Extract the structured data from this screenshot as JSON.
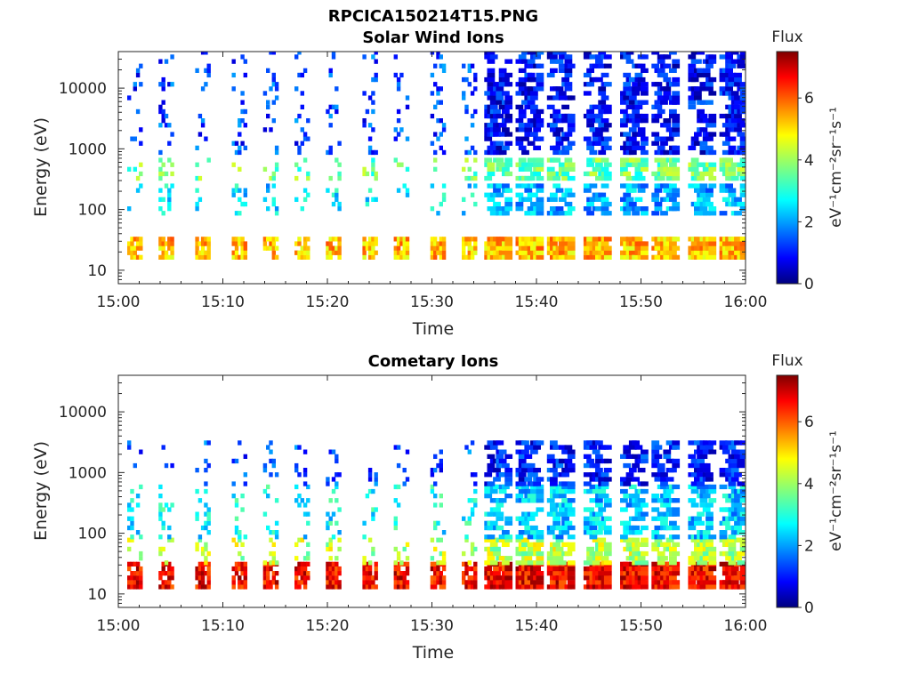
{
  "figure_title": "RPCICA150214T15.PNG",
  "colorbar": {
    "title": "Flux",
    "unit": "eV⁻¹cm⁻²sr⁻¹s⁻¹",
    "range": [
      0,
      7.5
    ],
    "ticks": [
      "0",
      "2",
      "4",
      "6"
    ],
    "colormap": "jet"
  },
  "chart_data": [
    {
      "type": "heatmap",
      "title": "Solar Wind Ions",
      "xlabel": "Time",
      "ylabel": "Energy (eV)",
      "x_ticks": [
        "15:00",
        "15:10",
        "15:20",
        "15:30",
        "15:40",
        "15:50",
        "16:00"
      ],
      "xlim_minutes": [
        0,
        60
      ],
      "y_scale": "log",
      "ylim": [
        6,
        40000
      ],
      "y_ticks": [
        "10",
        "100",
        "1000",
        "10000"
      ],
      "sweep_times_minutes": [
        1.5,
        4.5,
        8,
        11.5,
        14.5,
        17.5,
        20.5,
        24,
        27,
        30.5,
        33.5,
        36,
        39,
        42,
        45.5,
        49,
        52,
        55.5,
        58.5
      ],
      "dense_mode_start_minutes": 34.5,
      "bands": [
        {
          "energy_eV": [
            15,
            30
          ],
          "flux": 5.2
        },
        {
          "energy_eV": [
            300,
            700
          ],
          "flux": 3.6
        },
        {
          "energy_eV": [
            80,
            250
          ],
          "flux": 2.6
        },
        {
          "energy_eV": [
            800,
            40000
          ],
          "flux": 1.4
        }
      ]
    },
    {
      "type": "heatmap",
      "title": "Cometary Ions",
      "xlabel": "Time",
      "ylabel": "Energy (eV)",
      "x_ticks": [
        "15:00",
        "15:10",
        "15:20",
        "15:30",
        "15:40",
        "15:50",
        "16:00"
      ],
      "xlim_minutes": [
        0,
        60
      ],
      "y_scale": "log",
      "ylim": [
        6,
        40000
      ],
      "y_ticks": [
        "10",
        "100",
        "1000",
        "10000"
      ],
      "sweep_times_minutes": [
        1.5,
        4.5,
        8,
        11.5,
        14.5,
        17.5,
        20.5,
        24,
        27,
        30.5,
        33.5,
        36,
        39,
        42,
        45.5,
        49,
        52,
        55.5,
        58.5
      ],
      "dense_mode_start_minutes": 34.5,
      "bands": [
        {
          "energy_eV": [
            12,
            30
          ],
          "flux": 6.6
        },
        {
          "energy_eV": [
            30,
            80
          ],
          "flux": 4.2
        },
        {
          "energy_eV": [
            80,
            600
          ],
          "flux": 2.8
        },
        {
          "energy_eV": [
            600,
            3000
          ],
          "flux": 1.5
        }
      ]
    }
  ]
}
